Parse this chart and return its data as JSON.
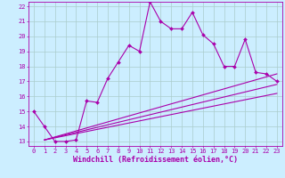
{
  "title": "",
  "xlabel": "Windchill (Refroidissement éolien,°C)",
  "background_color": "#cceeff",
  "grid_color": "#aacccc",
  "line_color": "#aa00aa",
  "xlim": [
    -0.5,
    23.5
  ],
  "ylim": [
    12.7,
    22.3
  ],
  "yticks": [
    13,
    14,
    15,
    16,
    17,
    18,
    19,
    20,
    21,
    22
  ],
  "xticks": [
    0,
    1,
    2,
    3,
    4,
    5,
    6,
    7,
    8,
    9,
    10,
    11,
    12,
    13,
    14,
    15,
    16,
    17,
    18,
    19,
    20,
    21,
    22,
    23
  ],
  "line1_x": [
    0,
    1,
    2,
    3,
    4,
    5,
    6,
    7,
    8,
    9,
    10,
    11,
    12,
    13,
    14,
    15,
    16,
    17,
    18,
    19,
    20,
    21,
    22,
    23
  ],
  "line1_y": [
    15.0,
    14.0,
    13.0,
    13.0,
    13.1,
    15.7,
    15.6,
    17.2,
    18.3,
    19.4,
    19.0,
    22.3,
    21.0,
    20.5,
    20.5,
    21.6,
    20.1,
    19.5,
    18.0,
    18.0,
    19.8,
    17.6,
    17.5,
    17.0
  ],
  "line2_x": [
    1,
    23
  ],
  "line2_y": [
    13.1,
    17.5
  ],
  "line3_x": [
    1,
    23
  ],
  "line3_y": [
    13.1,
    16.8
  ],
  "line4_x": [
    1,
    23
  ],
  "line4_y": [
    13.1,
    16.2
  ],
  "line_width": 0.8,
  "tick_fontsize": 5.0,
  "xlabel_fontsize": 6.0
}
